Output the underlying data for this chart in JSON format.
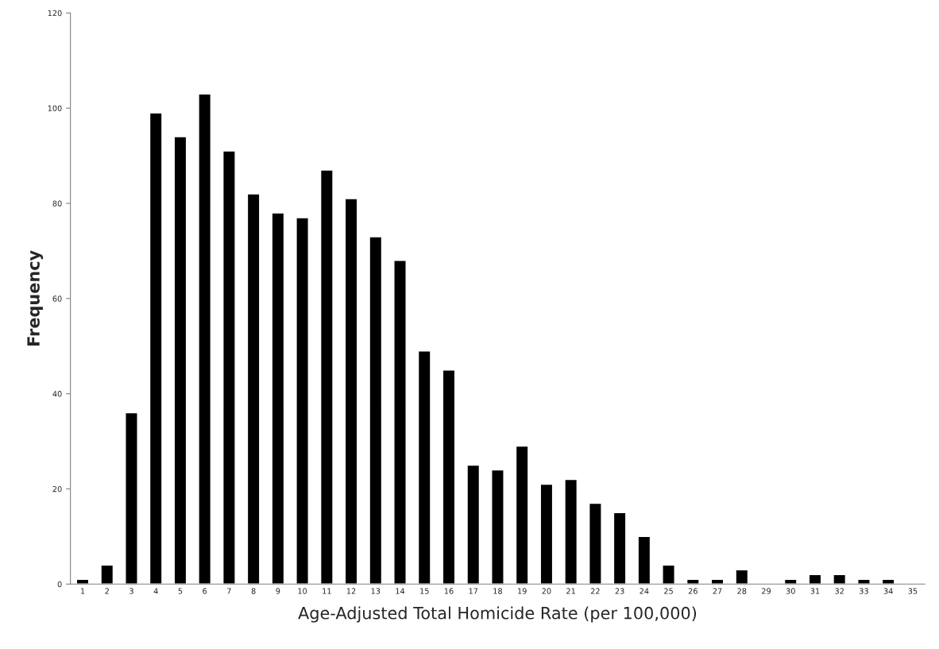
{
  "chart_data": {
    "type": "bar",
    "xlabel": "Age-Adjusted Total Homicide Rate (per 100,000)",
    "ylabel": "Frequency",
    "categories": [
      "1",
      "2",
      "3",
      "4",
      "5",
      "6",
      "7",
      "8",
      "9",
      "10",
      "11",
      "12",
      "13",
      "14",
      "15",
      "16",
      "17",
      "18",
      "19",
      "20",
      "21",
      "22",
      "23",
      "24",
      "25",
      "26",
      "27",
      "28",
      "29",
      "30",
      "31",
      "32",
      "33",
      "34",
      "35"
    ],
    "values": [
      1,
      4,
      36,
      99,
      94,
      103,
      91,
      82,
      78,
      77,
      87,
      81,
      73,
      68,
      49,
      45,
      25,
      24,
      29,
      21,
      22,
      17,
      15,
      10,
      4,
      1,
      1,
      3,
      null,
      1,
      2,
      2,
      1,
      1,
      null
    ],
    "color": "#000000",
    "ylim": [
      0,
      120
    ],
    "yticks": [
      0,
      20,
      40,
      60,
      80,
      100,
      120
    ],
    "grid": false,
    "legend": false
  }
}
